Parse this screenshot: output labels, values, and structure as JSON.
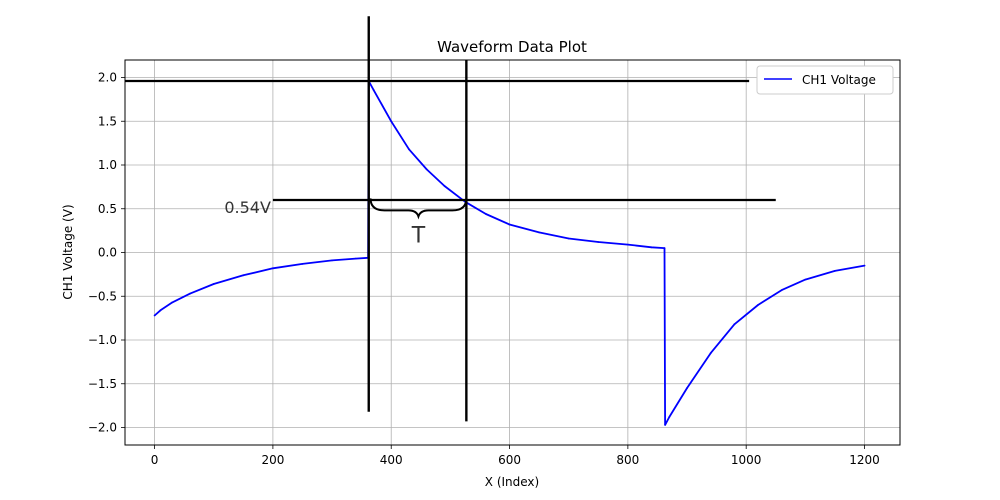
{
  "chart_data": {
    "type": "line",
    "title": "Waveform Data Plot",
    "xlabel": "X (Index)",
    "ylabel": "CH1 Voltage (V)",
    "xlim": [
      -50,
      1260
    ],
    "ylim": [
      -2.2,
      2.2
    ],
    "xticks": [
      0,
      200,
      400,
      600,
      800,
      1000,
      1200
    ],
    "yticks": [
      -2.0,
      -1.5,
      -1.0,
      -0.5,
      0.0,
      0.5,
      1.0,
      1.5,
      2.0
    ],
    "grid": true,
    "legend_position": "top-right",
    "series": [
      {
        "name": "CH1 Voltage",
        "color": "#0000ff",
        "x": [
          0,
          10,
          30,
          60,
          100,
          150,
          200,
          250,
          300,
          340,
          361,
          362,
          370,
          400,
          430,
          460,
          490,
          525,
          560,
          600,
          650,
          700,
          750,
          800,
          840,
          862,
          863,
          870,
          900,
          940,
          980,
          1020,
          1060,
          1100,
          1150,
          1200
        ],
        "y": [
          -0.72,
          -0.66,
          -0.57,
          -0.47,
          -0.36,
          -0.26,
          -0.18,
          -0.13,
          -0.09,
          -0.07,
          -0.06,
          1.96,
          1.86,
          1.5,
          1.18,
          0.95,
          0.76,
          0.58,
          0.44,
          0.32,
          0.23,
          0.16,
          0.12,
          0.09,
          0.06,
          0.05,
          -1.97,
          -1.88,
          -1.55,
          -1.15,
          -0.82,
          -0.6,
          -0.43,
          -0.31,
          -0.21,
          -0.15
        ]
      }
    ],
    "annotations": {
      "level_label": "0.54V",
      "period_label": "T",
      "color": "#000000",
      "top_line_y": 1.96,
      "top_line_x": [
        -50,
        1005
      ],
      "mid_line_y": 0.6,
      "mid_line_x": [
        200,
        1050
      ],
      "vline1_x": 362,
      "vline1_y": [
        -1.82,
        2.7
      ],
      "vline2_x": 527,
      "vline2_y": [
        -1.93,
        2.2
      ],
      "brace_x": [
        365,
        527
      ],
      "brace_y": 0.55
    }
  }
}
